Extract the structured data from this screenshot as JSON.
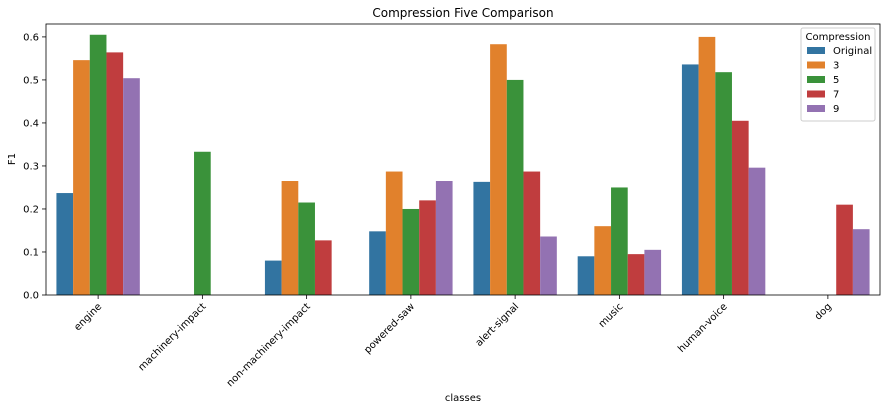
{
  "chart_data": {
    "type": "bar",
    "title": "Compression Five Comparison",
    "xlabel": "classes",
    "ylabel": "F1",
    "ylim": [
      0,
      0.63
    ],
    "yticks": [
      0.0,
      0.1,
      0.2,
      0.3,
      0.4,
      0.5,
      0.6
    ],
    "grid": false,
    "legend": {
      "title": "Compression",
      "placement": "top-right"
    },
    "categories": [
      "engine",
      "machinery-impact",
      "non-machinery-impact",
      "powered-saw",
      "alert-signal",
      "music",
      "human-voice",
      "dog"
    ],
    "series": [
      {
        "name": "Original",
        "color": "#3274a1",
        "values": [
          0.237,
          0,
          0.08,
          0.148,
          0.263,
          0.09,
          0.536,
          0
        ]
      },
      {
        "name": "3",
        "color": "#e1812c",
        "values": [
          0.546,
          0,
          0.265,
          0.287,
          0.583,
          0.16,
          0.6,
          0
        ]
      },
      {
        "name": "5",
        "color": "#3a923a",
        "values": [
          0.605,
          0.333,
          0.215,
          0.2,
          0.5,
          0.25,
          0.518,
          0
        ]
      },
      {
        "name": "7",
        "color": "#c03d3e",
        "values": [
          0.564,
          0,
          0.127,
          0.22,
          0.287,
          0.095,
          0.405,
          0.21
        ]
      },
      {
        "name": "9",
        "color": "#9372b2",
        "values": [
          0.504,
          0,
          0,
          0.265,
          0.136,
          0.105,
          0.296,
          0.153
        ]
      }
    ]
  }
}
